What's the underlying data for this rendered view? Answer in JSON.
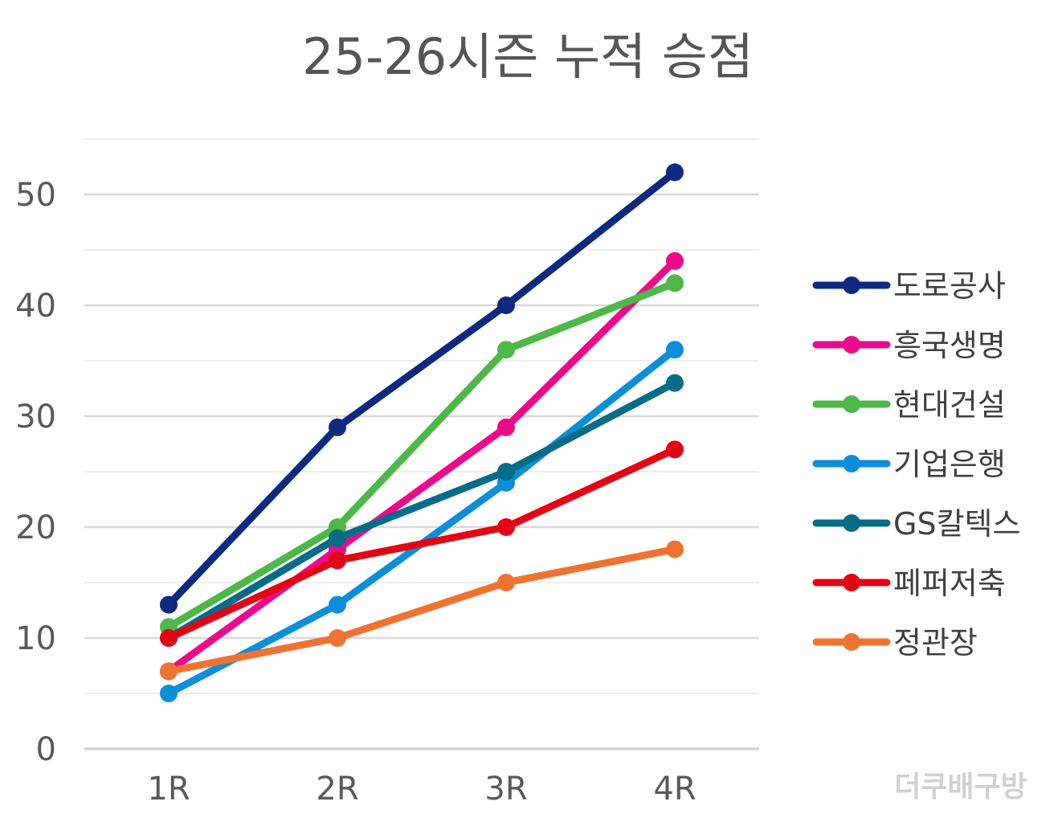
{
  "chart_data": {
    "type": "line",
    "title": "25-26시즌 누적 승점",
    "categories": [
      "1R",
      "2R",
      "3R",
      "4R"
    ],
    "ylim": [
      0,
      55
    ],
    "yticks": [
      0,
      10,
      20,
      30,
      40,
      50
    ],
    "minor_grid_step": 5,
    "grid": true,
    "legend_position": "right",
    "xlabel": "",
    "ylabel": "",
    "series": [
      {
        "name": "도로공사",
        "color": "#0d2a80",
        "values": [
          13,
          29,
          40,
          52
        ]
      },
      {
        "name": "흥국생명",
        "color": "#ec0a8c",
        "values": [
          7,
          18,
          29,
          44
        ]
      },
      {
        "name": "현대건설",
        "color": "#4db848",
        "values": [
          11,
          20,
          36,
          42
        ]
      },
      {
        "name": "기업은행",
        "color": "#0b8fd8",
        "values": [
          5,
          13,
          24,
          36
        ]
      },
      {
        "name": "GS칼텍스",
        "color": "#076c88",
        "values": [
          10,
          19,
          25,
          33
        ]
      },
      {
        "name": "페퍼저축",
        "color": "#e40514",
        "values": [
          10,
          17,
          20,
          27
        ]
      },
      {
        "name": "정관장",
        "color": "#ee7330",
        "values": [
          7,
          10,
          15,
          18
        ]
      }
    ],
    "watermark": "더쿠배구방"
  }
}
